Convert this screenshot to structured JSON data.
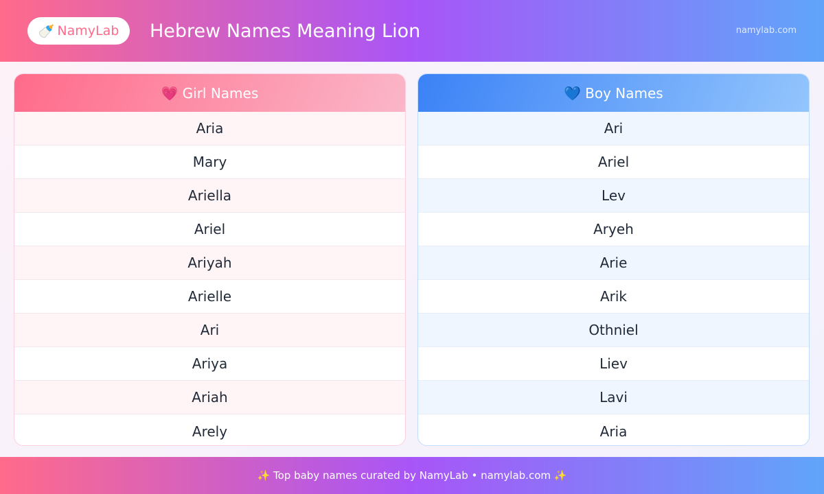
{
  "header": {
    "logo_icon": "baby-bottle",
    "logo_text": "NamyLab",
    "title": "Hebrew Names Meaning Lion",
    "site": "namylab.com"
  },
  "girls": {
    "icon": "heart",
    "title": "Girl Names",
    "names": [
      "Aria",
      "Mary",
      "Ariella",
      "Ariel",
      "Ariyah",
      "Arielle",
      "Ari",
      "Ariya",
      "Ariah",
      "Arely"
    ]
  },
  "boys": {
    "icon": "blue-heart",
    "title": "Boy Names",
    "names": [
      "Ari",
      "Ariel",
      "Lev",
      "Aryeh",
      "Arie",
      "Arik",
      "Othniel",
      "Liev",
      "Lavi",
      "Aria"
    ]
  },
  "footer": {
    "text": "✨ Top baby names curated by NamyLab • namylab.com ✨"
  },
  "colors": {
    "pink": "#ff6b8a",
    "purple": "#a855f7",
    "blue": "#60a5fa"
  }
}
